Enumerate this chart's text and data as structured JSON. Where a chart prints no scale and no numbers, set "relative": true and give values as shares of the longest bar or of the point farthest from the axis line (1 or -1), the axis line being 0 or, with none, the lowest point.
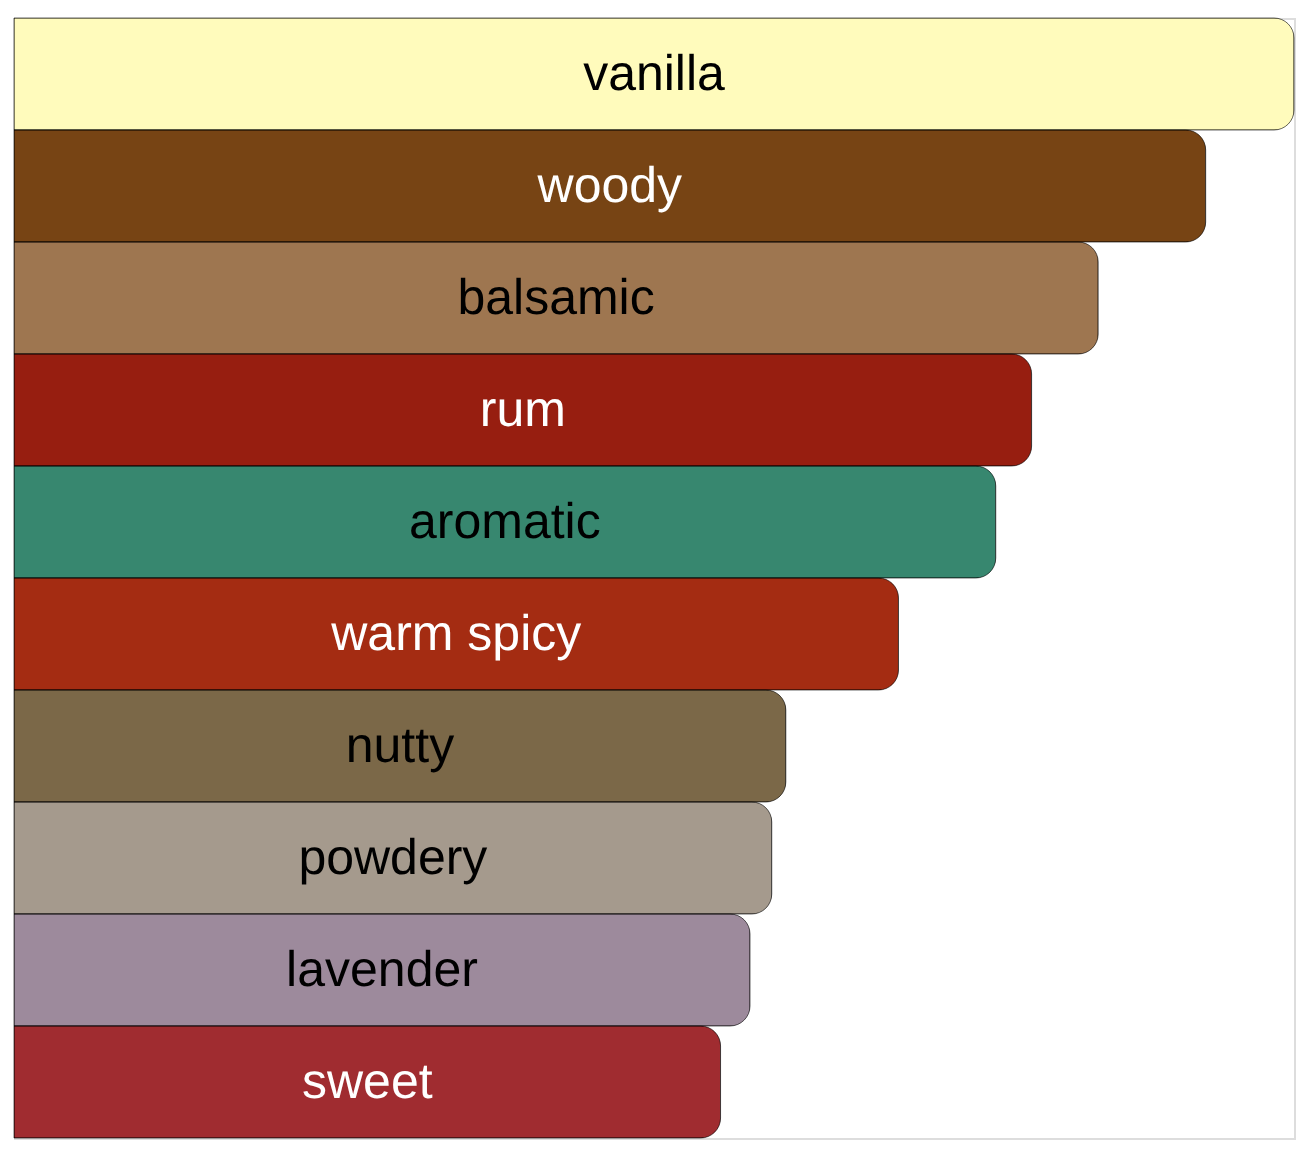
{
  "chart_data": {
    "type": "bar",
    "orientation": "horizontal",
    "relative": true,
    "tick_labels": false,
    "categories": [
      "vanilla",
      "woody",
      "balsamic",
      "rum",
      "aromatic",
      "warm spicy",
      "nutty",
      "powdery",
      "lavender",
      "sweet"
    ],
    "values": [
      1,
      0.931,
      0.847,
      0.795,
      0.767,
      0.691,
      0.603,
      0.592,
      0.575,
      0.552
    ],
    "colors": [
      "#fffbbc",
      "#774414",
      "#9e7650",
      "#971e10",
      "#37876f",
      "#a42c12",
      "#7b6848",
      "#a59a8d",
      "#9d8a9c",
      "#a02c30"
    ]
  }
}
